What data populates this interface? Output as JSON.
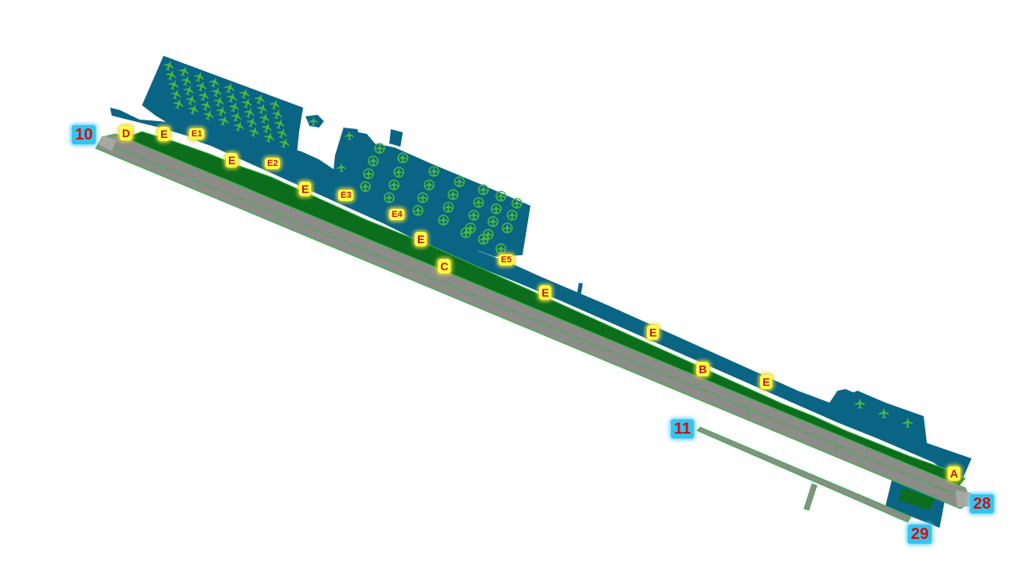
{
  "map": {
    "runways": [
      {
        "id": "rwy-10",
        "label": "10"
      },
      {
        "id": "rwy-28",
        "label": "28"
      },
      {
        "id": "rwy-11",
        "label": "11"
      },
      {
        "id": "rwy-29",
        "label": "29"
      }
    ],
    "taxiways": {
      "d": "D",
      "e1": "E",
      "e1s": "E1",
      "e2": "E",
      "e2s": "E2",
      "e3": "E",
      "e3s": "E3",
      "e4s": "E4",
      "e5": "E",
      "c": "C",
      "e5s": "E5",
      "e6": "E",
      "e7": "E",
      "b": "B",
      "e8": "E",
      "a": "A"
    },
    "colors": {
      "apron": "#0a6585",
      "grass": "#0c6e1c",
      "runway": "#8c8c88",
      "aircraft": "#4cb83a",
      "runway_label_bg": "#35c4f0",
      "runway_label_text": "#d01010",
      "taxiway_label_bg": "#ffff44",
      "taxiway_label_text": "#d01010"
    }
  }
}
